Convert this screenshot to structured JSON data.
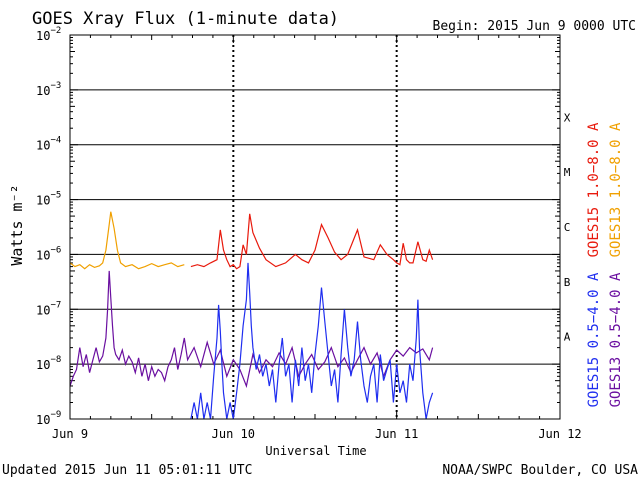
{
  "header": {
    "title": "GOES Xray Flux (1-minute data)",
    "begin": "Begin:  2015 Jun 9 0000 UTC"
  },
  "footer": {
    "updated": "Updated 2015 Jun 11 05:01:11 UTC",
    "credit": "NOAA/SWPC Boulder, CO USA"
  },
  "colors": {
    "goes15_long": "#e8190c",
    "goes13_long": "#f0a000",
    "goes15_short": "#1f2ef0",
    "goes13_short": "#6a0fa0",
    "grid": "#000000"
  },
  "chart_data": {
    "type": "line",
    "title": "GOES Xray Flux (1-minute data)",
    "xlabel": "Universal Time",
    "ylabel": "Watts m⁻²",
    "yscale": "log",
    "ylim": [
      1e-09,
      0.01
    ],
    "xlim": [
      0,
      3
    ],
    "x_unit": "days since 2015 Jun 9 0000 UTC",
    "x_ticks": [
      {
        "x": 0,
        "label": "Jun 9"
      },
      {
        "x": 1,
        "label": "Jun 10"
      },
      {
        "x": 2,
        "label": "Jun 11"
      },
      {
        "x": 3,
        "label": "Jun 12"
      }
    ],
    "y_ticks": [
      {
        "exp": -9,
        "label": "10",
        "sup": "−9"
      },
      {
        "exp": -8,
        "label": "10",
        "sup": "−8"
      },
      {
        "exp": -7,
        "label": "10",
        "sup": "−7"
      },
      {
        "exp": -6,
        "label": "10",
        "sup": "−6"
      },
      {
        "exp": -5,
        "label": "10",
        "sup": "−5"
      },
      {
        "exp": -4,
        "label": "10",
        "sup": "−4"
      },
      {
        "exp": -3,
        "label": "10",
        "sup": "−3"
      },
      {
        "exp": -2,
        "label": "10",
        "sup": "−2"
      }
    ],
    "flare_classes": [
      {
        "label": "A",
        "exp": -8
      },
      {
        "label": "B",
        "exp": -7
      },
      {
        "label": "C",
        "exp": -6
      },
      {
        "label": "M",
        "exp": -5
      },
      {
        "label": "X",
        "exp": -4
      }
    ],
    "grid": true,
    "legend": [
      {
        "label": "GOES15 1.0−8.0 A",
        "color": "#e8190c"
      },
      {
        "label": "GOES13 1.0−8.0 A",
        "color": "#f0a000"
      },
      {
        "label": "GOES15 0.5−4.0 A",
        "color": "#1f2ef0"
      },
      {
        "label": "GOES13 0.5−4.0 A",
        "color": "#6a0fa0"
      }
    ],
    "series": [
      {
        "name": "GOES13 1.0−8.0 A",
        "color": "#f0a000",
        "x": [
          0.0,
          0.03,
          0.06,
          0.09,
          0.12,
          0.15,
          0.18,
          0.2,
          0.22,
          0.24,
          0.25,
          0.27,
          0.29,
          0.31,
          0.34,
          0.38,
          0.42,
          0.46,
          0.5,
          0.54,
          0.58,
          0.62,
          0.66,
          0.7
        ],
        "y": [
          7e-07,
          6e-07,
          6.5e-07,
          5.5e-07,
          6.5e-07,
          5.8e-07,
          6.2e-07,
          7e-07,
          1.2e-06,
          3.5e-06,
          6e-06,
          3e-06,
          1.2e-06,
          7e-07,
          6e-07,
          6.5e-07,
          5.5e-07,
          6e-07,
          6.8e-07,
          6e-07,
          6.5e-07,
          7e-07,
          6e-07,
          6.5e-07
        ]
      },
      {
        "name": "GOES15 1.0−8.0 A",
        "color": "#e8190c",
        "x": [
          0.74,
          0.78,
          0.82,
          0.86,
          0.9,
          0.92,
          0.94,
          0.96,
          0.98,
          1.0,
          1.02,
          1.04,
          1.06,
          1.08,
          1.1,
          1.12,
          1.16,
          1.2,
          1.26,
          1.32,
          1.38,
          1.42,
          1.46,
          1.5,
          1.54,
          1.58,
          1.62,
          1.66,
          1.7,
          1.76,
          1.8,
          1.86,
          1.9,
          1.94,
          1.98,
          2.0,
          2.02,
          2.04,
          2.06,
          2.08,
          2.1,
          2.13,
          2.16,
          2.18,
          2.2,
          2.22
        ],
        "y": [
          6e-07,
          6.5e-07,
          6e-07,
          7e-07,
          8e-07,
          2.8e-06,
          1.2e-06,
          8e-07,
          6e-07,
          6.5e-07,
          5.5e-07,
          6e-07,
          1.5e-06,
          1e-06,
          5.5e-06,
          2.5e-06,
          1.3e-06,
          8e-07,
          6e-07,
          7e-07,
          1e-06,
          8e-07,
          7e-07,
          1.2e-06,
          3.5e-06,
          2e-06,
          1.1e-06,
          8e-07,
          1e-06,
          2.8e-06,
          9e-07,
          8e-07,
          1.5e-06,
          1e-06,
          8e-07,
          7e-07,
          6.5e-07,
          1.6e-06,
          8e-07,
          7e-07,
          7e-07,
          1.7e-06,
          8e-07,
          7.5e-07,
          1.2e-06,
          8e-07
        ]
      },
      {
        "name": "GOES13 0.5−4.0 A",
        "color": "#6a0fa0",
        "x": [
          0.0,
          0.02,
          0.04,
          0.06,
          0.08,
          0.1,
          0.12,
          0.14,
          0.16,
          0.18,
          0.2,
          0.22,
          0.23,
          0.24,
          0.25,
          0.26,
          0.27,
          0.28,
          0.3,
          0.32,
          0.34,
          0.36,
          0.38,
          0.4,
          0.42,
          0.44,
          0.46,
          0.48,
          0.5,
          0.52,
          0.54,
          0.56,
          0.58,
          0.6,
          0.62,
          0.64,
          0.66,
          0.68,
          0.7,
          0.72,
          0.76,
          0.8,
          0.84,
          0.88,
          0.92,
          0.96,
          1.0,
          1.04,
          1.08,
          1.12,
          1.16,
          1.2,
          1.24,
          1.28,
          1.32,
          1.36,
          1.4,
          1.44,
          1.48,
          1.52,
          1.56,
          1.6,
          1.64,
          1.68,
          1.72,
          1.76,
          1.8,
          1.84,
          1.88,
          1.92,
          1.96,
          2.0,
          2.04,
          2.08,
          2.12,
          2.16,
          2.2,
          2.22
        ],
        "y": [
          4e-09,
          6e-09,
          8e-09,
          2e-08,
          9e-09,
          1.5e-08,
          7e-09,
          1.2e-08,
          2e-08,
          1.1e-08,
          1.4e-08,
          3e-08,
          1e-07,
          5e-07,
          1.6e-07,
          5e-08,
          2e-08,
          1.5e-08,
          1.2e-08,
          1.8e-08,
          1e-08,
          1.4e-08,
          1.1e-08,
          7e-09,
          1.3e-08,
          6e-09,
          1e-08,
          5e-09,
          9e-09,
          6e-09,
          8e-09,
          7e-09,
          5e-09,
          9e-09,
          1.2e-08,
          2e-08,
          8e-09,
          1.5e-08,
          3e-08,
          1.2e-08,
          2e-08,
          9e-09,
          2.5e-08,
          1e-08,
          1.8e-08,
          6e-09,
          1.2e-08,
          8e-09,
          4e-09,
          1.5e-08,
          7e-09,
          1.2e-08,
          9e-09,
          1.6e-08,
          1e-08,
          2e-08,
          6e-09,
          1e-08,
          1.5e-08,
          8e-09,
          1.1e-08,
          2e-08,
          9e-09,
          1.3e-08,
          7e-09,
          1.2e-08,
          2e-08,
          1e-08,
          1.6e-08,
          6e-09,
          1.2e-08,
          1.8e-08,
          1.4e-08,
          2e-08,
          1.6e-08,
          1.9e-08,
          1.2e-08,
          2e-08
        ]
      },
      {
        "name": "GOES15 0.5−4.0 A",
        "color": "#1f2ef0",
        "x": [
          0.74,
          0.76,
          0.78,
          0.8,
          0.82,
          0.84,
          0.86,
          0.88,
          0.9,
          0.91,
          0.92,
          0.93,
          0.94,
          0.96,
          0.98,
          1.0,
          1.02,
          1.04,
          1.06,
          1.08,
          1.09,
          1.1,
          1.11,
          1.12,
          1.14,
          1.16,
          1.18,
          1.2,
          1.22,
          1.24,
          1.26,
          1.28,
          1.3,
          1.32,
          1.34,
          1.36,
          1.38,
          1.4,
          1.42,
          1.44,
          1.46,
          1.48,
          1.5,
          1.52,
          1.54,
          1.56,
          1.58,
          1.6,
          1.62,
          1.64,
          1.66,
          1.68,
          1.7,
          1.72,
          1.74,
          1.76,
          1.78,
          1.8,
          1.82,
          1.84,
          1.86,
          1.88,
          1.9,
          1.92,
          1.94,
          1.96,
          1.98,
          2.0,
          2.02,
          2.04,
          2.06,
          2.08,
          2.1,
          2.12,
          2.13,
          2.14,
          2.16,
          2.18,
          2.2,
          2.22
        ],
        "y": [
          1e-09,
          2e-09,
          1e-09,
          3e-09,
          1e-09,
          2e-09,
          1e-09,
          6e-09,
          3e-08,
          1.2e-07,
          4e-08,
          1e-08,
          3e-09,
          1e-09,
          2e-09,
          1e-09,
          3e-09,
          1e-08,
          5e-08,
          1.5e-07,
          7e-07,
          2e-07,
          5e-08,
          2e-08,
          8e-09,
          1.5e-08,
          6e-09,
          1e-08,
          4e-09,
          8e-09,
          2e-09,
          1e-08,
          3e-08,
          6e-09,
          1e-08,
          2e-09,
          1.2e-08,
          4e-09,
          2e-08,
          5e-09,
          1e-08,
          3e-09,
          1.5e-08,
          5e-08,
          2.5e-07,
          6e-08,
          1.5e-08,
          4e-09,
          8e-09,
          2e-09,
          1.5e-08,
          1e-07,
          2e-08,
          6e-09,
          1.2e-08,
          6e-08,
          1.2e-08,
          4e-09,
          2e-09,
          6e-09,
          1e-08,
          2e-09,
          1.5e-08,
          5e-09,
          8e-09,
          1.2e-08,
          2e-09,
          1e-08,
          3e-09,
          5e-09,
          2e-09,
          1e-08,
          5e-09,
          3e-08,
          1.5e-07,
          2e-08,
          3e-09,
          1e-09,
          2e-09,
          3e-09
        ]
      }
    ],
    "data_gaps": [
      1.0,
      2.0
    ]
  }
}
